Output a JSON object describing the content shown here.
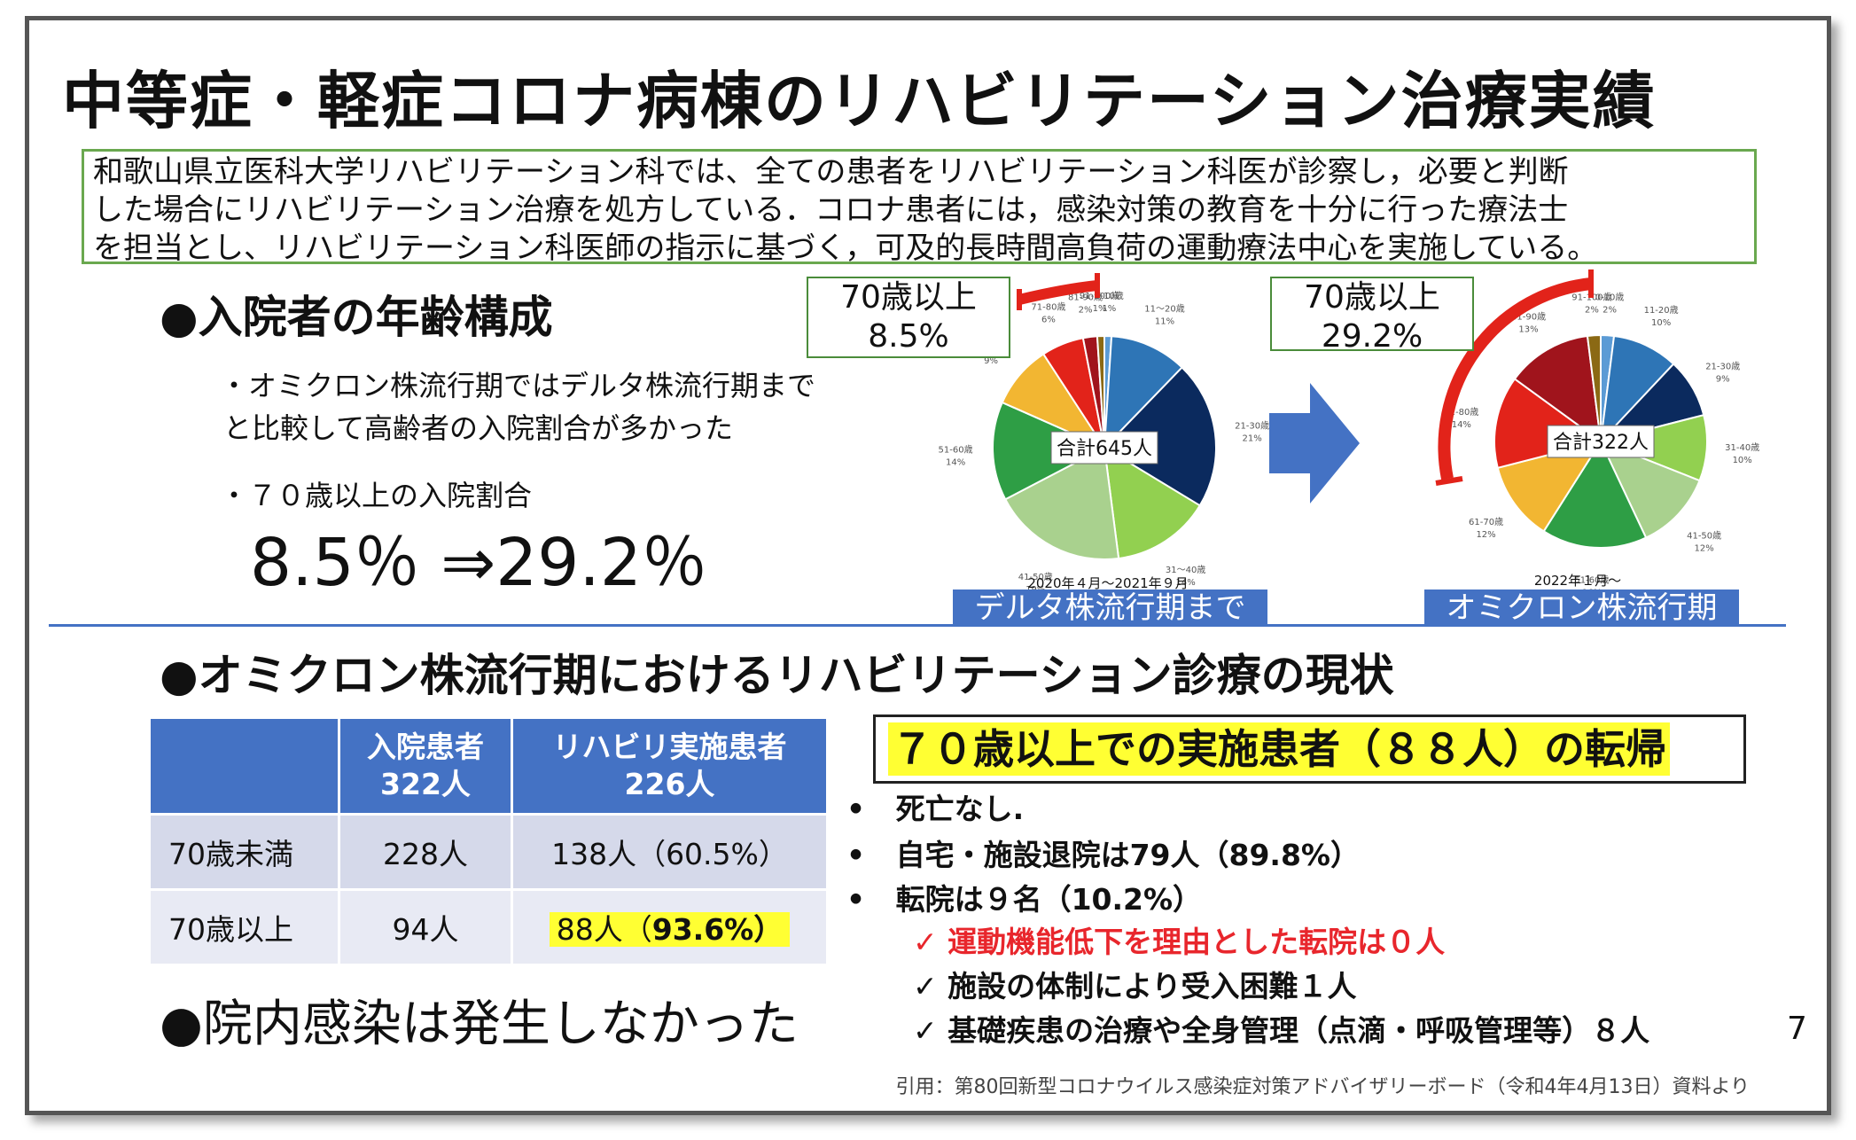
{
  "title": "中等症・軽症コロナ病棟のリハビリテーション治療実績",
  "intro": {
    "line1": "和歌山県立医科大学リハビリテーション科では、全ての患者をリハビリテーション科医が診察し，必要と判断",
    "line2": "した場合にリハビリテーション治療を処方している．コロナ患者には，感染対策の教育を十分に行った療法士",
    "line3": "を担当とし、リハビリテーション科医師の指示に基づく，可及的長時間高負荷の運動療法中心を実施している。"
  },
  "age_section": {
    "heading": "●入院者の年齢構成",
    "note1_line1": "・オミクロン株流行期ではデルタ株流行期まで",
    "note1_line2": "と比較して高齢者の入院割合が多かった",
    "note2": "・７０歳以上の入院割合",
    "ratio": "8.5％ ⇒29.2％"
  },
  "delta_chart": {
    "callout_line1": "70歳以上",
    "callout_line2": "8.5%",
    "center_label": "合計645人",
    "caption": "2020年４月～2021年９月",
    "period_label": "デルタ株流行期まで"
  },
  "omicron_chart": {
    "callout_line1": "70歳以上",
    "callout_line2": "29.2%",
    "center_label": "合計322人",
    "caption": "2022年１月～",
    "period_label": "オミクロン株流行期"
  },
  "chart_data": [
    {
      "type": "pie",
      "title": "合計645人",
      "categories": [
        "0-10歳",
        "11～20歳",
        "21-30歳",
        "31～40歳",
        "41-50歳",
        "51-60歳",
        "61-70歳",
        "71-80歳",
        "81-90歳",
        "91-100歳"
      ],
      "values": [
        1,
        11,
        21,
        14,
        19,
        14,
        9,
        6,
        2,
        1
      ],
      "unit": "%",
      "colors": [
        "#5b9bd5",
        "#2e75b6",
        "#0b2a5e",
        "#92d050",
        "#a9d18e",
        "#2e9e45",
        "#f2b632",
        "#e2231a",
        "#a0141c",
        "#8b6914"
      ],
      "caption": "2020年４月～2021年９月"
    },
    {
      "type": "pie",
      "title": "合計322人",
      "categories": [
        "0-10歳",
        "11-20歳",
        "21-30歳",
        "31-40歳",
        "41-50歳",
        "51-60歳",
        "61-70歳",
        "71-80歳",
        "81-90歳",
        "91-100歳"
      ],
      "values": [
        2,
        10,
        9,
        10,
        12,
        16,
        12,
        14,
        13,
        2
      ],
      "unit": "%",
      "colors": [
        "#5b9bd5",
        "#2e75b6",
        "#0b2a5e",
        "#92d050",
        "#a9d18e",
        "#2e9e45",
        "#f2b632",
        "#e2231a",
        "#a0141c",
        "#8b6914"
      ],
      "caption": "2022年１月～"
    }
  ],
  "rehab_section": {
    "heading": "●オミクロン株流行期におけるリハビリテーション診療の現状",
    "table": {
      "header": [
        "",
        "入院患者\n322人",
        "リハビリ実施患者\n226人"
      ],
      "h1a": "入院患者",
      "h1b": "322人",
      "h2a": "リハビリ実施患者",
      "h2b": "226人",
      "rows": [
        {
          "label": "70歳未満",
          "admitted": "228人",
          "rehab": "138人（60.5%）"
        },
        {
          "label": "70歳以上",
          "admitted": "94人",
          "rehab_a": "88人（",
          "rehab_b": "93.6%）"
        }
      ]
    },
    "infection": "●院内感染は発生しなかった"
  },
  "outcome": {
    "heading": "７０歳以上での実施患者（８８人）の転帰",
    "bullets": [
      "死亡なし.",
      "自宅・施設退院は79人（89.8%）",
      "転院は９名（10.2%）"
    ],
    "checks": [
      "運動機能低下を理由とした転院は０人",
      "施設の体制により受入困難１人",
      "基礎疾患の治療や全身管理（点滴・呼吸管理等）８人"
    ]
  },
  "page_number": "7",
  "citation": "引用：第80回新型コロナウイルス感染症対策アドバイザリーボード（令和4年4月13日）資料より"
}
